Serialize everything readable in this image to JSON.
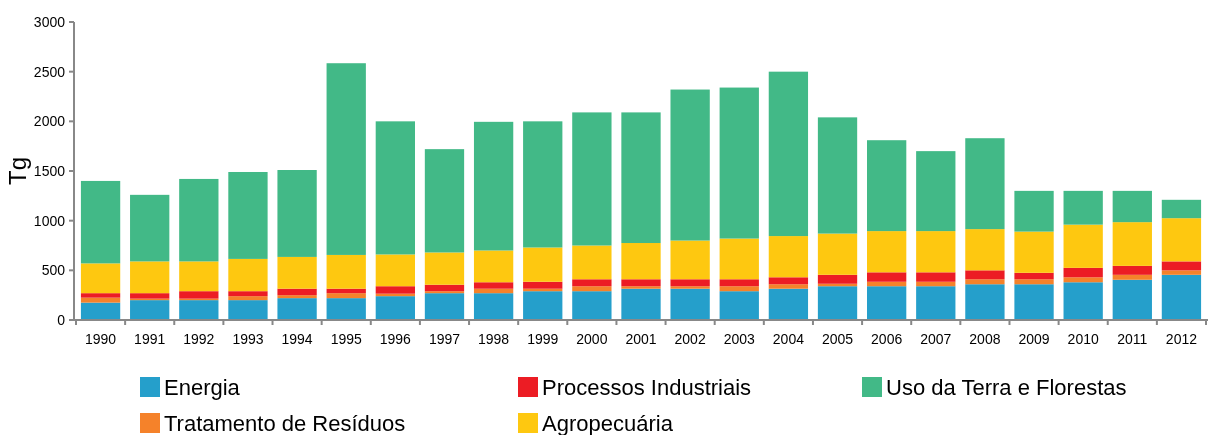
{
  "chart_data": {
    "type": "bar",
    "stacked": true,
    "ylabel": "Tg",
    "ylim": [
      0,
      3000
    ],
    "yticks": [
      0,
      500,
      1000,
      1500,
      2000,
      2500,
      3000
    ],
    "grid": false,
    "legend": "bottom",
    "categories": [
      "1990",
      "1991",
      "1992",
      "1993",
      "1994",
      "1995",
      "1996",
      "1997",
      "1998",
      "1999",
      "2000",
      "2001",
      "2002",
      "2003",
      "2004",
      "2005",
      "2006",
      "2007",
      "2008",
      "2009",
      "2010",
      "2011",
      "2012"
    ],
    "series": [
      {
        "name": "Energia",
        "color": "#259fcb",
        "values": [
          175,
          200,
          200,
          200,
          220,
          220,
          240,
          270,
          270,
          290,
          290,
          315,
          315,
          290,
          315,
          340,
          340,
          340,
          360,
          360,
          380,
          405,
          455
        ]
      },
      {
        "name": "Tratamento de Resíduos",
        "color": "#f5822a",
        "values": [
          50,
          15,
          15,
          40,
          30,
          50,
          25,
          20,
          45,
          25,
          50,
          25,
          25,
          50,
          45,
          25,
          45,
          45,
          50,
          50,
          50,
          50,
          45
        ]
      },
      {
        "name": "Processos Industriais",
        "color": "#ec1c24",
        "values": [
          45,
          55,
          75,
          50,
          65,
          45,
          75,
          65,
          65,
          70,
          70,
          70,
          70,
          70,
          70,
          90,
          95,
          95,
          90,
          65,
          95,
          90,
          90
        ]
      },
      {
        "name": "Agropecuária",
        "color": "#fec810",
        "values": [
          300,
          320,
          300,
          325,
          320,
          340,
          320,
          325,
          320,
          345,
          340,
          365,
          390,
          410,
          415,
          415,
          415,
          415,
          415,
          415,
          435,
          440,
          435
        ]
      },
      {
        "name": "Uso da Terra e Florestas",
        "color": "#42b987",
        "values": [
          830,
          670,
          830,
          875,
          875,
          1930,
          1340,
          1040,
          1295,
          1270,
          1340,
          1315,
          1520,
          1520,
          1655,
          1170,
          915,
          805,
          915,
          410,
          340,
          315,
          185
        ]
      }
    ]
  }
}
